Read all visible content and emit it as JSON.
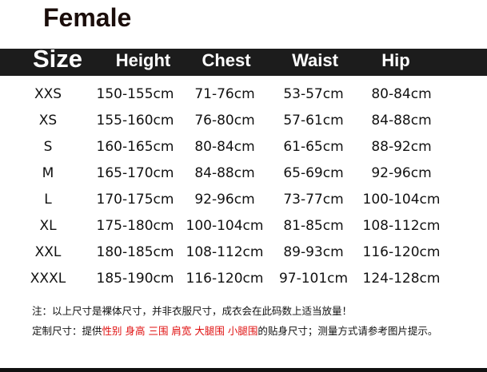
{
  "title": "Female",
  "headers": [
    "Size",
    "Height",
    "Chest",
    "Waist",
    "Hip"
  ],
  "rows": [
    [
      "XXS",
      "150-155cm",
      "71-76cm",
      "53-57cm",
      "80-84cm"
    ],
    [
      "XS",
      "155-160cm",
      "76-80cm",
      "57-61cm",
      "84-88cm"
    ],
    [
      "S",
      "160-165cm",
      "80-84cm",
      "61-65cm",
      "88-92cm"
    ],
    [
      "M",
      "165-170cm",
      "84-88cm",
      "65-69cm",
      "92-96cm"
    ],
    [
      "L",
      "170-175cm",
      "92-96cm",
      "73-77cm",
      "100-104cm"
    ],
    [
      "XL",
      "175-180cm",
      "100-104cm",
      "81-85cm",
      "108-112cm"
    ],
    [
      "XXL",
      "180-185cm",
      "108-112cm",
      "89-93cm",
      "116-120cm"
    ],
    [
      "XXXL",
      "185-190cm",
      "116-120cm",
      "97-101cm",
      "124-128cm"
    ]
  ],
  "notes": {
    "line1": "注：以上尺寸是裸体尺寸，并非衣服尺寸，成衣会在此码数上适当放量！",
    "line2_prefix": "定制尺寸：提供",
    "line2_highlight": "性别 身高 三围 肩宽 大腿围 小腿围",
    "line2_suffix": "的贴身尺寸；测量方式请参考图片提示。",
    "highlight_color": "#e01010"
  }
}
